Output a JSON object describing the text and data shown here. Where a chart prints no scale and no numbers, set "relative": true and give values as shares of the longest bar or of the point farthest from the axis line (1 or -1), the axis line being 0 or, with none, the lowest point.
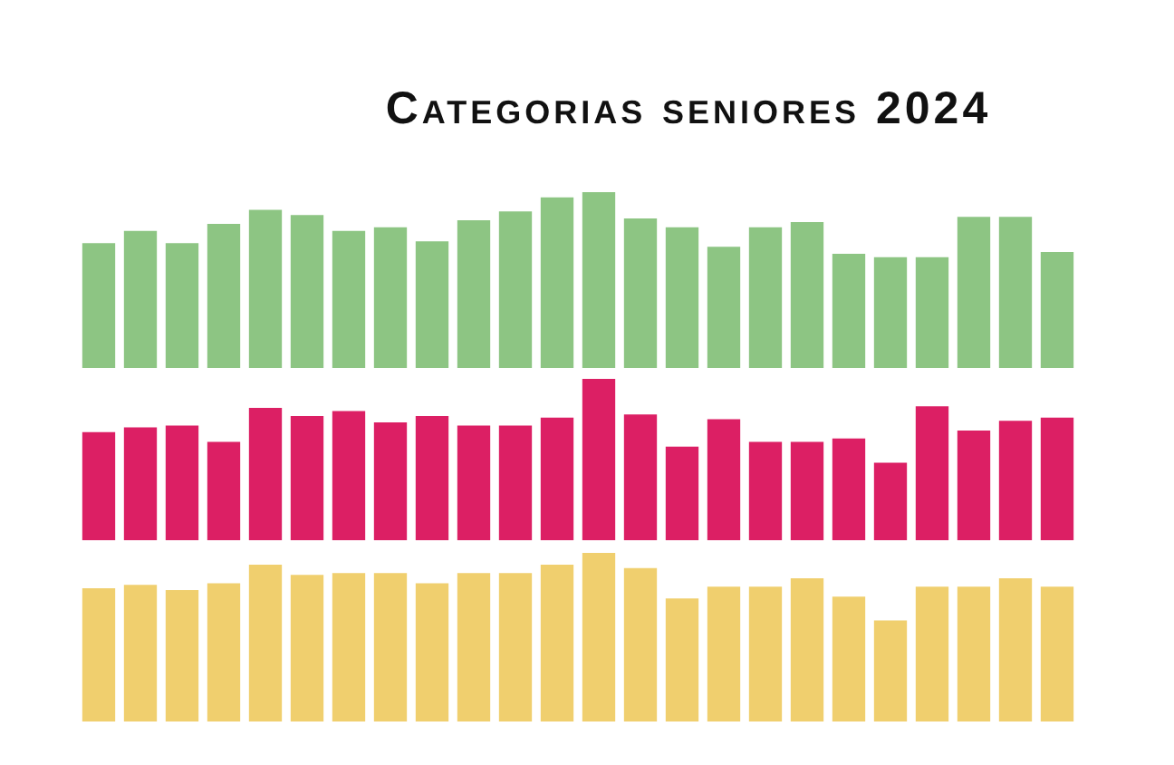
{
  "chart_data": [
    {
      "type": "bar",
      "title": "Categorias seniores 2024",
      "relative": true,
      "categories": [
        null,
        null,
        null,
        null,
        null,
        null,
        null,
        null,
        null,
        null,
        null,
        null,
        null,
        null,
        null,
        null,
        null,
        null,
        null,
        null,
        null,
        null,
        null,
        null
      ],
      "color": "#8dc583",
      "values": [
        0.71,
        0.78,
        0.71,
        0.82,
        0.9,
        0.87,
        0.78,
        0.8,
        0.72,
        0.84,
        0.89,
        0.97,
        1,
        0.85,
        0.8,
        0.69,
        0.8,
        0.83,
        0.65,
        0.63,
        0.63,
        0.86,
        0.86,
        0.66
      ]
    },
    {
      "type": "bar",
      "relative": true,
      "categories": [
        null,
        null,
        null,
        null,
        null,
        null,
        null,
        null,
        null,
        null,
        null,
        null,
        null,
        null,
        null,
        null,
        null,
        null,
        null,
        null,
        null,
        null,
        null,
        null
      ],
      "color": "#dc1f64",
      "values": [
        0.67,
        0.7,
        0.71,
        0.61,
        0.82,
        0.77,
        0.8,
        0.73,
        0.77,
        0.71,
        0.71,
        0.76,
        1,
        0.78,
        0.58,
        0.75,
        0.61,
        0.61,
        0.63,
        0.48,
        0.83,
        0.68,
        0.74,
        0.76
      ]
    },
    {
      "type": "bar",
      "relative": true,
      "categories": [
        null,
        null,
        null,
        null,
        null,
        null,
        null,
        null,
        null,
        null,
        null,
        null,
        null,
        null,
        null,
        null,
        null,
        null,
        null,
        null,
        null,
        null,
        null,
        null
      ],
      "color": "#f0cf6e",
      "values": [
        0.79,
        0.81,
        0.78,
        0.82,
        0.93,
        0.87,
        0.88,
        0.88,
        0.82,
        0.88,
        0.88,
        0.93,
        1,
        0.91,
        0.73,
        0.8,
        0.8,
        0.85,
        0.74,
        0.6,
        0.8,
        0.8,
        0.85,
        0.8
      ]
    }
  ]
}
